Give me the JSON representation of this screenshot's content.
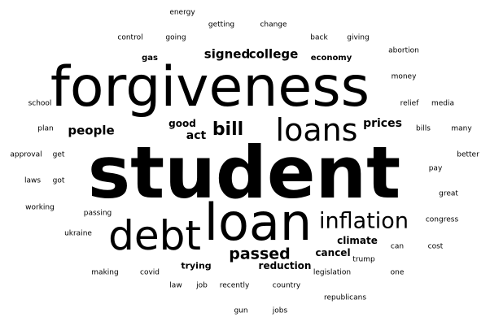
{
  "word_cloud": {
    "text_color": "#000000",
    "background": "#ffffff",
    "words": [
      {
        "text": "student"
      },
      {
        "text": "forgiveness"
      },
      {
        "text": "loan"
      },
      {
        "text": "debt"
      },
      {
        "text": "loans"
      },
      {
        "text": "inflation"
      },
      {
        "text": "bill"
      },
      {
        "text": "passed"
      },
      {
        "text": "signed"
      },
      {
        "text": "college"
      },
      {
        "text": "people"
      },
      {
        "text": "prices"
      },
      {
        "text": "act"
      },
      {
        "text": "good"
      },
      {
        "text": "climate"
      },
      {
        "text": "cancel"
      },
      {
        "text": "reduction"
      },
      {
        "text": "trying"
      },
      {
        "text": "economy"
      },
      {
        "text": "gas"
      },
      {
        "text": "energy"
      },
      {
        "text": "getting"
      },
      {
        "text": "change"
      },
      {
        "text": "control"
      },
      {
        "text": "going"
      },
      {
        "text": "back"
      },
      {
        "text": "giving"
      },
      {
        "text": "abortion"
      },
      {
        "text": "money"
      },
      {
        "text": "school"
      },
      {
        "text": "relief"
      },
      {
        "text": "media"
      },
      {
        "text": "plan"
      },
      {
        "text": "bills"
      },
      {
        "text": "many"
      },
      {
        "text": "approval"
      },
      {
        "text": "get"
      },
      {
        "text": "better"
      },
      {
        "text": "laws"
      },
      {
        "text": "got"
      },
      {
        "text": "pay"
      },
      {
        "text": "great"
      },
      {
        "text": "working"
      },
      {
        "text": "passing"
      },
      {
        "text": "congress"
      },
      {
        "text": "ukraine"
      },
      {
        "text": "can"
      },
      {
        "text": "cost"
      },
      {
        "text": "trump"
      },
      {
        "text": "making"
      },
      {
        "text": "covid"
      },
      {
        "text": "legislation"
      },
      {
        "text": "one"
      },
      {
        "text": "law"
      },
      {
        "text": "job"
      },
      {
        "text": "recently"
      },
      {
        "text": "country"
      },
      {
        "text": "republicans"
      },
      {
        "text": "gun"
      },
      {
        "text": "jobs"
      }
    ]
  }
}
